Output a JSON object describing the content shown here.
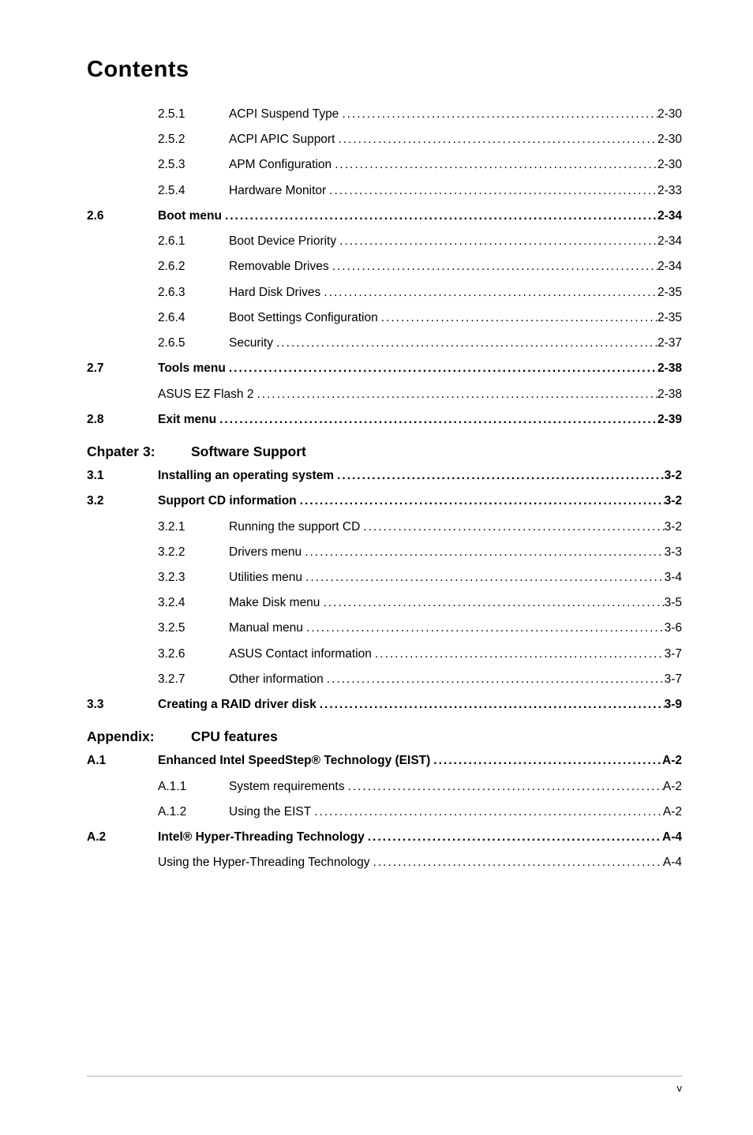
{
  "title": "Contents",
  "chapters": [
    {
      "heading": null,
      "rows": [
        {
          "lvl": 2,
          "num": "2.5.1",
          "label": "ACPI Suspend Type",
          "page": "2-30"
        },
        {
          "lvl": 2,
          "num": "2.5.2",
          "label": "ACPI APIC Support",
          "page": "2-30"
        },
        {
          "lvl": 2,
          "num": "2.5.3",
          "label": "APM Configuration",
          "page": "2-30"
        },
        {
          "lvl": 2,
          "num": "2.5.4",
          "label": "Hardware Monitor",
          "page": "2-33"
        },
        {
          "lvl": 1,
          "num": "2.6",
          "label": "Boot menu",
          "page": "2-34"
        },
        {
          "lvl": 2,
          "num": "2.6.1",
          "label": "Boot Device Priority",
          "page": "2-34"
        },
        {
          "lvl": 2,
          "num": "2.6.2",
          "label": "Removable Drives",
          "page": "2-34"
        },
        {
          "lvl": 2,
          "num": "2.6.3",
          "label": "Hard Disk Drives",
          "page": "2-35"
        },
        {
          "lvl": 2,
          "num": "2.6.4",
          "label": "Boot Settings Configuration",
          "page": "2-35"
        },
        {
          "lvl": 2,
          "num": "2.6.5",
          "label": "Security",
          "page": "2-37"
        },
        {
          "lvl": 1,
          "num": "2.7",
          "label": "Tools menu",
          "page": "2-38"
        },
        {
          "lvl": 2,
          "num": "",
          "label": "ASUS EZ Flash 2",
          "page": "2-38",
          "nonum": true
        },
        {
          "lvl": 1,
          "num": "2.8",
          "label": "Exit menu",
          "page": "2-39"
        }
      ]
    },
    {
      "heading": {
        "num": "Chpater 3:",
        "label": "Software Support"
      },
      "rows": [
        {
          "lvl": 1,
          "num": "3.1",
          "label": "Installing an operating system",
          "page": "3-2"
        },
        {
          "lvl": 1,
          "num": "3.2",
          "label": "Support CD information",
          "page": "3-2"
        },
        {
          "lvl": 2,
          "num": "3.2.1",
          "label": "Running the support CD",
          "page": "3-2"
        },
        {
          "lvl": 2,
          "num": "3.2.2",
          "label": "Drivers menu",
          "page": "3-3"
        },
        {
          "lvl": 2,
          "num": "3.2.3",
          "label": "Utilities menu",
          "page": "3-4"
        },
        {
          "lvl": 2,
          "num": "3.2.4",
          "label": "Make Disk menu",
          "page": "3-5"
        },
        {
          "lvl": 2,
          "num": "3.2.5",
          "label": "Manual menu",
          "page": "3-6"
        },
        {
          "lvl": 2,
          "num": "3.2.6",
          "label": "ASUS Contact information",
          "page": "3-7"
        },
        {
          "lvl": 2,
          "num": "3.2.7",
          "label": "Other information",
          "page": "3-7"
        },
        {
          "lvl": 1,
          "num": "3.3",
          "label": "Creating a RAID driver disk",
          "page": "3-9"
        }
      ]
    },
    {
      "heading": {
        "num": "Appendix:",
        "label": "CPU features"
      },
      "rows": [
        {
          "lvl": 1,
          "num": "A.1",
          "label": "Enhanced Intel SpeedStep® Technology (EIST)",
          "page": "A-2"
        },
        {
          "lvl": 2,
          "num": "A.1.1",
          "label": "System requirements",
          "page": "A-2"
        },
        {
          "lvl": 2,
          "num": "A.1.2",
          "label": "Using the EIST",
          "page": "A-2"
        },
        {
          "lvl": 1,
          "num": "A.2",
          "label": "Intel® Hyper-Threading Technology",
          "page": "A-4"
        },
        {
          "lvl": 2,
          "num": "",
          "label": "Using the Hyper-Threading Technology",
          "page": "A-4",
          "nonum": true
        }
      ]
    }
  ],
  "footer_page": "v"
}
